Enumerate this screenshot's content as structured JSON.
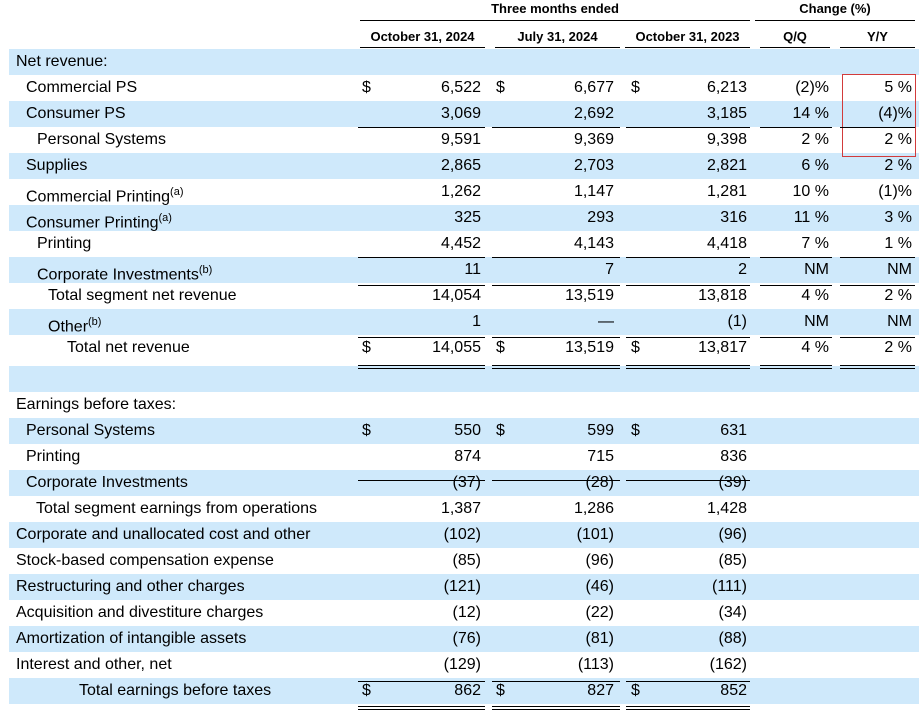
{
  "header": {
    "group_label": "Three months ended",
    "change_label": "Change (%)",
    "columns": [
      "October 31, 2024",
      "July 31, 2024",
      "October 31, 2023",
      "Q/Q",
      "Y/Y"
    ]
  },
  "revenue": {
    "heading": "Net revenue:",
    "rows": [
      {
        "label": "Commercial PS",
        "dollar": "$",
        "c1": "6,522",
        "c2": "6,677",
        "c3": "6,213",
        "qq": "(2)%",
        "yy": "5 %"
      },
      {
        "label": "Consumer PS",
        "dollar": "",
        "c1": "3,069",
        "c2": "2,692",
        "c3": "3,185",
        "qq": "14 %",
        "yy": "(4)%"
      },
      {
        "label": "Personal Systems",
        "dollar": "",
        "c1": "9,591",
        "c2": "9,369",
        "c3": "9,398",
        "qq": "2 %",
        "yy": "2 %"
      },
      {
        "label": "Supplies",
        "dollar": "",
        "c1": "2,865",
        "c2": "2,703",
        "c3": "2,821",
        "qq": "6 %",
        "yy": "2 %"
      },
      {
        "label": "Commercial Printing",
        "sup": "(a)",
        "dollar": "",
        "c1": "1,262",
        "c2": "1,147",
        "c3": "1,281",
        "qq": "10 %",
        "yy": "(1)%"
      },
      {
        "label": "Consumer Printing",
        "sup": "(a)",
        "dollar": "",
        "c1": "325",
        "c2": "293",
        "c3": "316",
        "qq": "11 %",
        "yy": "3 %"
      },
      {
        "label": "Printing",
        "dollar": "",
        "c1": "4,452",
        "c2": "4,143",
        "c3": "4,418",
        "qq": "7 %",
        "yy": "1 %"
      },
      {
        "label": "Corporate Investments",
        "sup": "(b)",
        "dollar": "",
        "c1": "11",
        "c2": "7",
        "c3": "2",
        "qq": "NM",
        "yy": "NM"
      },
      {
        "label": "Total segment net revenue",
        "dollar": "",
        "c1": "14,054",
        "c2": "13,519",
        "c3": "13,818",
        "qq": "4 %",
        "yy": "2 %"
      },
      {
        "label": "Other",
        "sup": "(b)",
        "dollar": "",
        "c1": "1",
        "c2": "—",
        "c3": "(1)",
        "qq": "NM",
        "yy": "NM"
      },
      {
        "label": "Total net revenue",
        "dollar": "$",
        "c1": "14,055",
        "c2": "13,519",
        "c3": "13,817",
        "qq": "4 %",
        "yy": "2 %"
      }
    ]
  },
  "earnings": {
    "heading": "Earnings before taxes:",
    "rows": [
      {
        "label": "Personal Systems",
        "dollar": "$",
        "c1": "550",
        "c2": "599",
        "c3": "631"
      },
      {
        "label": "Printing",
        "dollar": "",
        "c1": "874",
        "c2": "715",
        "c3": "836"
      },
      {
        "label": "Corporate Investments",
        "dollar": "",
        "c1": "(37)",
        "c2": "(28)",
        "c3": "(39)"
      },
      {
        "label": "Total segment earnings from operations",
        "dollar": "",
        "c1": "1,387",
        "c2": "1,286",
        "c3": "1,428"
      },
      {
        "label": "Corporate and unallocated cost and other",
        "dollar": "",
        "c1": "(102)",
        "c2": "(101)",
        "c3": "(96)"
      },
      {
        "label": "Stock-based compensation expense",
        "dollar": "",
        "c1": "(85)",
        "c2": "(96)",
        "c3": "(85)"
      },
      {
        "label": "Restructuring and other charges",
        "dollar": "",
        "c1": "(121)",
        "c2": "(46)",
        "c3": "(111)"
      },
      {
        "label": "Acquisition and divestiture charges",
        "dollar": "",
        "c1": "(12)",
        "c2": "(22)",
        "c3": "(34)"
      },
      {
        "label": "Amortization of intangible assets",
        "dollar": "",
        "c1": "(76)",
        "c2": "(81)",
        "c3": "(88)"
      },
      {
        "label": "Interest and other, net",
        "dollar": "",
        "c1": "(129)",
        "c2": "(113)",
        "c3": "(162)"
      },
      {
        "label": "Total earnings before taxes",
        "dollar": "$",
        "c1": "862",
        "c2": "827",
        "c3": "852"
      }
    ]
  },
  "colors": {
    "shade": "#cfe9fb",
    "highlight_box": "#d23b3b"
  }
}
